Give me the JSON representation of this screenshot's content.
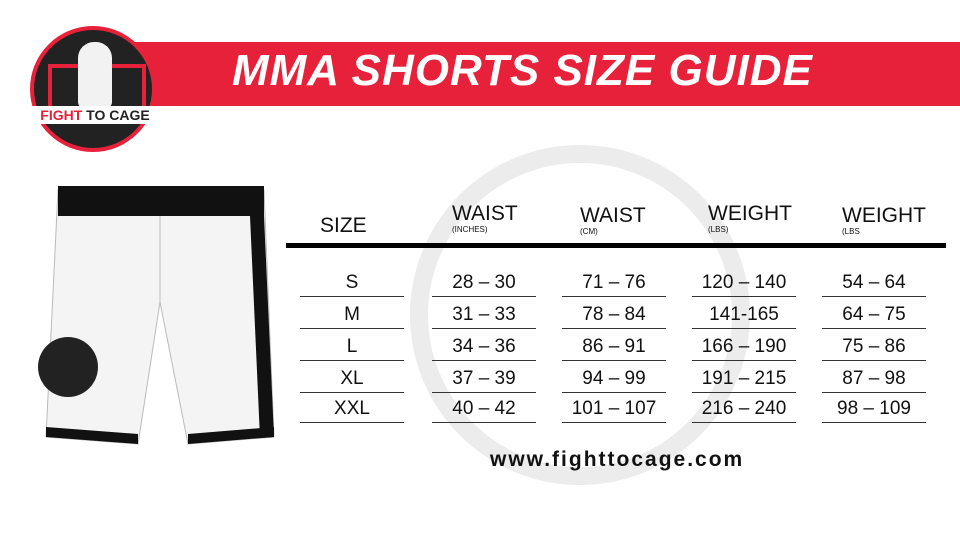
{
  "title": "MMA SHORTS SIZE GUIDE",
  "logo": {
    "text_red": "FIGHT",
    "text_dark": "TO CAGE"
  },
  "brand_color": "#e8213b",
  "table": {
    "headers": [
      {
        "label": "SIZE",
        "unit": ""
      },
      {
        "label": "WAIST",
        "unit": "(INCHES)"
      },
      {
        "label": "WAIST",
        "unit": "(CM)"
      },
      {
        "label": "WEIGHT",
        "unit": "(LBS)"
      },
      {
        "label": "WEIGHT",
        "unit": "(LBS"
      }
    ],
    "rows": [
      [
        "S",
        "28 – 30",
        "71 – 76",
        "120 – 140",
        "54 – 64"
      ],
      [
        "M",
        "31 – 33",
        "78 – 84",
        "141-165",
        "64 – 75"
      ],
      [
        "L",
        "34 – 36",
        "86 – 91",
        "166 – 190",
        "75 – 86"
      ],
      [
        "XL",
        "37 – 39",
        "94 – 99",
        "191 – 215",
        "87 – 98"
      ],
      [
        "XXL",
        "40 – 42",
        "101 – 107",
        "216 – 240",
        "98 – 109"
      ]
    ]
  },
  "url": "www.fighttocage.com"
}
